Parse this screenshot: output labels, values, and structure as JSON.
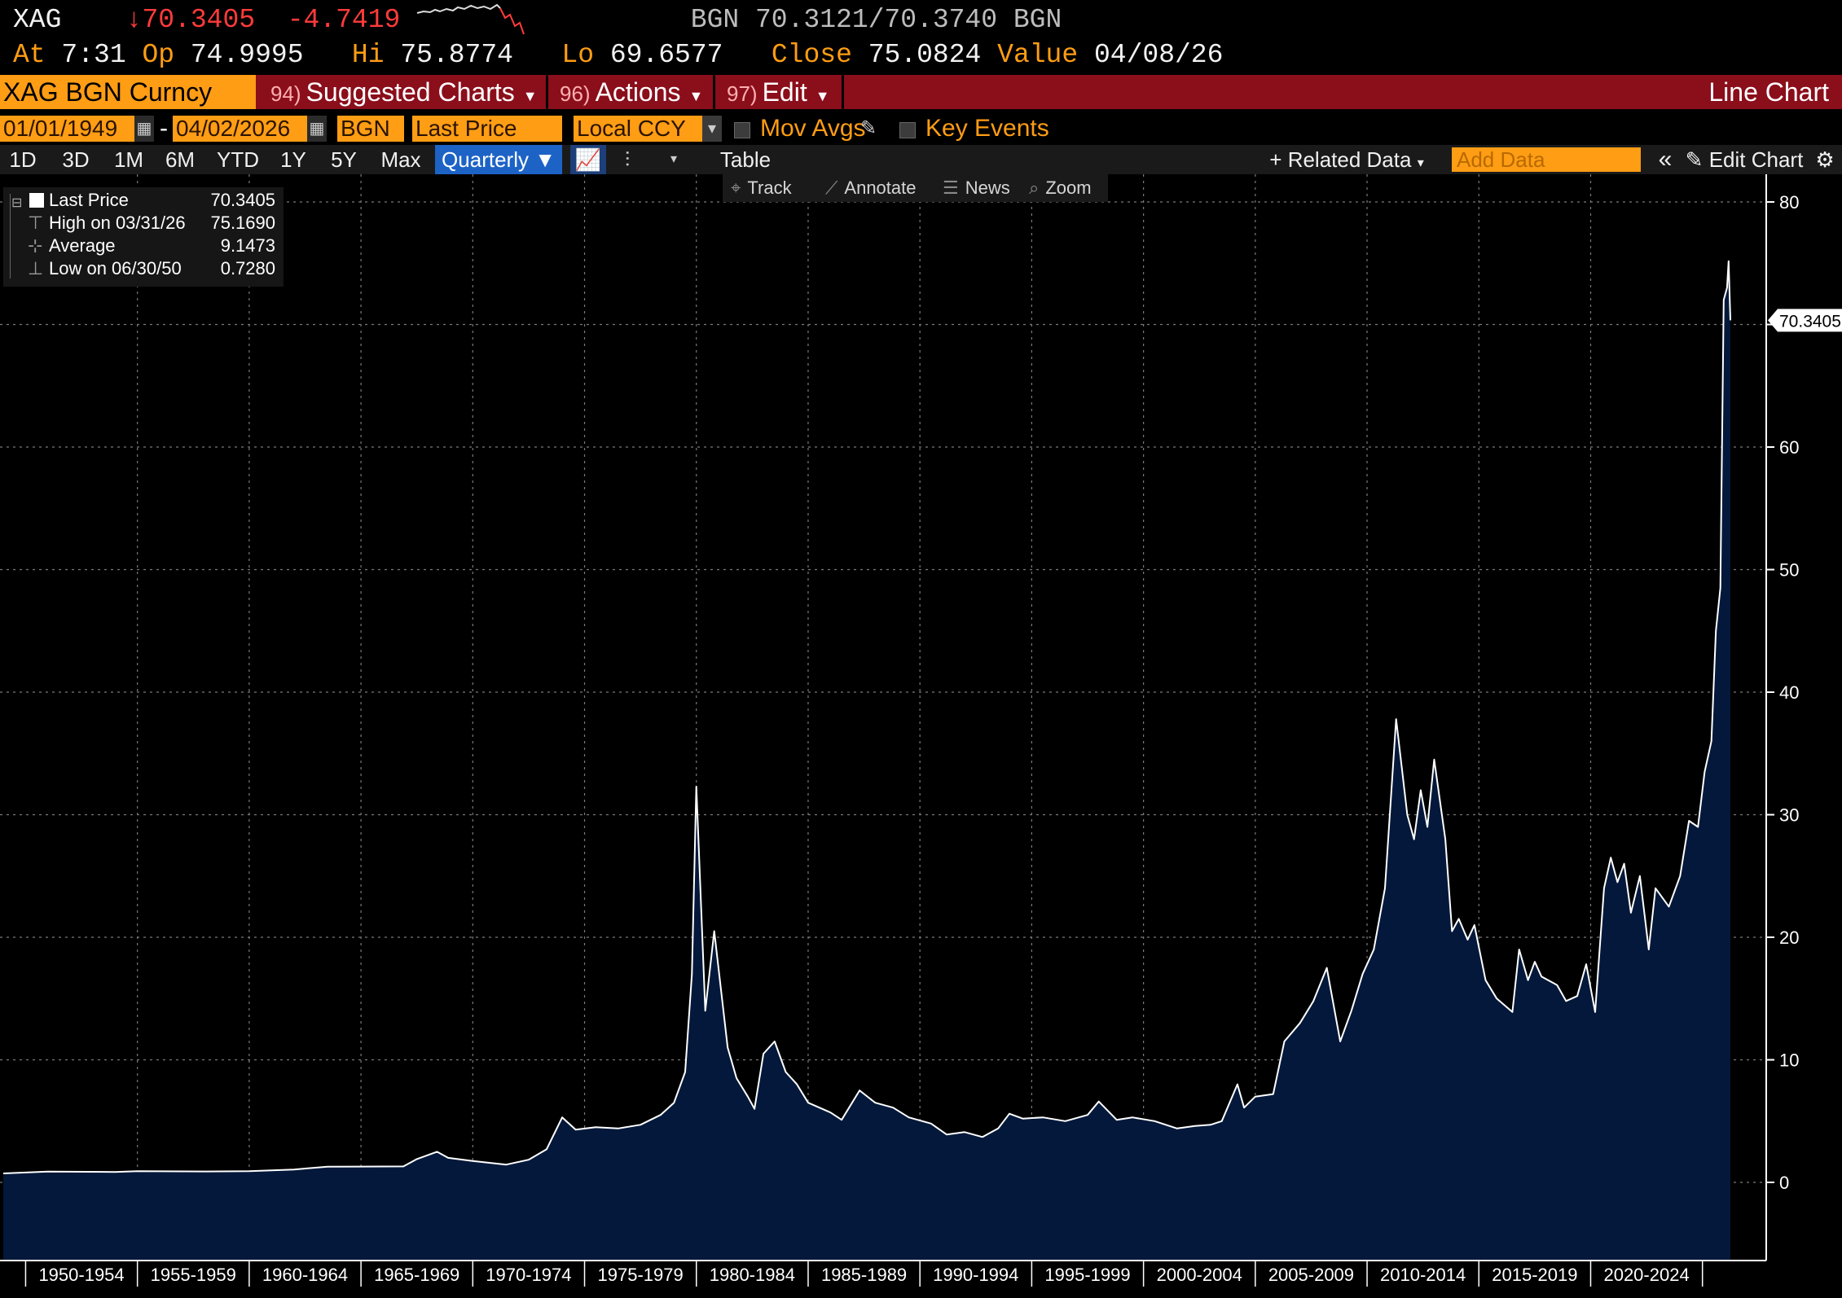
{
  "quote": {
    "ticker": "XAG",
    "last": "↓70.3405",
    "change": "-4.7419",
    "bid_ask": "BGN 70.3121/70.3740 BGN",
    "at_label": "At",
    "at_value": "7:31",
    "op_label": "Op",
    "op_value": "74.9995",
    "hi_label": "Hi",
    "hi_value": "75.8774",
    "lo_label": "Lo",
    "lo_value": "69.6577",
    "close_label": "Close",
    "close_value": "75.0824",
    "value_label": "Value",
    "value_value": "04/08/26"
  },
  "menubar": {
    "security": "XAG BGN Curncy",
    "suggested": {
      "num": "94)",
      "label": "Suggested Charts"
    },
    "actions": {
      "num": "96)",
      "label": "Actions"
    },
    "edit": {
      "num": "97)",
      "label": "Edit"
    },
    "chart_type": "Line Chart"
  },
  "settings": {
    "start_date": "01/01/1949",
    "dash": "-",
    "end_date": "04/02/2026",
    "source": "BGN",
    "field": "Last Price",
    "currency": "Local CCY",
    "mov_avgs": "Mov Avgs",
    "key_events": "Key Events"
  },
  "toolbar": {
    "ranges": [
      "1D",
      "3D",
      "1M",
      "6M",
      "YTD",
      "1Y",
      "5Y",
      "Max"
    ],
    "period": "Quarterly",
    "table": "Table",
    "related": "+ Related Data",
    "add_data_placeholder": "Add Data",
    "edit_chart": "Edit Chart"
  },
  "tools": {
    "track": "Track",
    "annotate": "Annotate",
    "news": "News",
    "zoom": "Zoom"
  },
  "legend": {
    "last_label": "Last Price",
    "last_value": "70.3405",
    "high_label": "High on 03/31/26",
    "high_value": "75.1690",
    "avg_label": "Average",
    "avg_value": "9.1473",
    "low_label": "Low on 06/30/50",
    "low_value": "0.7280"
  },
  "colors": {
    "line": "#ffffff",
    "area": "#03183a",
    "accent_orange": "#ff9d14",
    "menubar_red": "#8b0e1b",
    "price_red": "#ff3b3b"
  },
  "chart_data": {
    "type": "area",
    "title": "",
    "xlabel": "",
    "ylabel": "",
    "ylim": [
      -6,
      82
    ],
    "yticks": [
      0,
      10,
      20,
      30,
      40,
      50,
      60,
      70,
      80
    ],
    "ytick_labels": [
      "0",
      "10",
      "20",
      "30",
      "40",
      "50",
      "60",
      "70",
      "80"
    ],
    "last_value_label": "70.3405",
    "grid": true,
    "x_domain": [
      1949.0,
      2026.25
    ],
    "x_categories": [
      "1950-1954",
      "1955-1959",
      "1960-1964",
      "1965-1969",
      "1970-1974",
      "1975-1979",
      "1980-1984",
      "1985-1989",
      "1990-1994",
      "1995-1999",
      "2000-2004",
      "2005-2009",
      "2010-2014",
      "2015-2019",
      "2020-2024"
    ],
    "series": [
      {
        "values": [
          [
            1949.0,
            0.73
          ],
          [
            1951.0,
            0.88
          ],
          [
            1954.0,
            0.85
          ],
          [
            1955.0,
            0.91
          ],
          [
            1958.0,
            0.89
          ],
          [
            1960.0,
            0.91
          ],
          [
            1962.0,
            1.05
          ],
          [
            1963.5,
            1.28
          ],
          [
            1965.0,
            1.29
          ],
          [
            1966.9,
            1.3
          ],
          [
            1967.5,
            1.9
          ],
          [
            1968.4,
            2.5
          ],
          [
            1968.9,
            2.0
          ],
          [
            1970.0,
            1.75
          ],
          [
            1971.5,
            1.45
          ],
          [
            1972.5,
            1.85
          ],
          [
            1973.3,
            2.7
          ],
          [
            1974.0,
            5.3
          ],
          [
            1974.6,
            4.3
          ],
          [
            1975.5,
            4.5
          ],
          [
            1976.5,
            4.4
          ],
          [
            1977.5,
            4.7
          ],
          [
            1978.4,
            5.5
          ],
          [
            1979.0,
            6.5
          ],
          [
            1979.5,
            9.0
          ],
          [
            1979.8,
            17.0
          ],
          [
            1980.0,
            32.3
          ],
          [
            1980.4,
            14.0
          ],
          [
            1980.8,
            20.5
          ],
          [
            1981.4,
            11.0
          ],
          [
            1981.8,
            8.5
          ],
          [
            1982.3,
            7.0
          ],
          [
            1982.6,
            6.0
          ],
          [
            1983.0,
            10.5
          ],
          [
            1983.5,
            11.5
          ],
          [
            1984.0,
            9.0
          ],
          [
            1984.5,
            8.0
          ],
          [
            1985.0,
            6.5
          ],
          [
            1986.0,
            5.7
          ],
          [
            1986.5,
            5.1
          ],
          [
            1987.3,
            7.5
          ],
          [
            1988.0,
            6.5
          ],
          [
            1988.8,
            6.1
          ],
          [
            1989.5,
            5.3
          ],
          [
            1990.5,
            4.8
          ],
          [
            1991.2,
            3.9
          ],
          [
            1992.0,
            4.1
          ],
          [
            1992.8,
            3.7
          ],
          [
            1993.5,
            4.4
          ],
          [
            1994.0,
            5.6
          ],
          [
            1994.6,
            5.2
          ],
          [
            1995.5,
            5.3
          ],
          [
            1996.5,
            5.0
          ],
          [
            1997.5,
            5.5
          ],
          [
            1998.0,
            6.6
          ],
          [
            1998.8,
            5.1
          ],
          [
            1999.5,
            5.3
          ],
          [
            2000.5,
            5.0
          ],
          [
            2001.5,
            4.4
          ],
          [
            2002.3,
            4.6
          ],
          [
            2003.0,
            4.7
          ],
          [
            2003.5,
            5.0
          ],
          [
            2004.2,
            8.0
          ],
          [
            2004.5,
            6.1
          ],
          [
            2005.0,
            7.0
          ],
          [
            2005.8,
            7.2
          ],
          [
            2006.3,
            11.5
          ],
          [
            2007.0,
            13.0
          ],
          [
            2007.6,
            14.8
          ],
          [
            2008.2,
            17.5
          ],
          [
            2008.8,
            11.5
          ],
          [
            2009.3,
            14.0
          ],
          [
            2009.8,
            17.0
          ],
          [
            2010.3,
            19.0
          ],
          [
            2010.8,
            24.0
          ],
          [
            2011.3,
            37.8
          ],
          [
            2011.8,
            30.0
          ],
          [
            2012.1,
            28.0
          ],
          [
            2012.4,
            32.0
          ],
          [
            2012.7,
            29.0
          ],
          [
            2013.0,
            34.5
          ],
          [
            2013.5,
            28.0
          ],
          [
            2013.8,
            20.5
          ],
          [
            2014.1,
            21.5
          ],
          [
            2014.5,
            19.8
          ],
          [
            2014.8,
            21.0
          ],
          [
            2015.3,
            16.5
          ],
          [
            2015.8,
            15.0
          ],
          [
            2016.5,
            13.9
          ],
          [
            2016.8,
            19.0
          ],
          [
            2017.2,
            16.5
          ],
          [
            2017.5,
            18.0
          ],
          [
            2017.8,
            16.8
          ],
          [
            2018.5,
            16.1
          ],
          [
            2018.9,
            14.8
          ],
          [
            2019.4,
            15.2
          ],
          [
            2019.8,
            17.8
          ],
          [
            2020.2,
            13.9
          ],
          [
            2020.6,
            24.0
          ],
          [
            2020.9,
            26.5
          ],
          [
            2021.2,
            24.5
          ],
          [
            2021.5,
            26.0
          ],
          [
            2021.8,
            22.0
          ],
          [
            2022.2,
            25.0
          ],
          [
            2022.6,
            19.0
          ],
          [
            2022.9,
            24.0
          ],
          [
            2023.5,
            22.5
          ],
          [
            2024.0,
            25.0
          ],
          [
            2024.4,
            29.5
          ],
          [
            2024.8,
            29.0
          ],
          [
            2025.1,
            33.5
          ],
          [
            2025.4,
            36.0
          ],
          [
            2025.6,
            45.0
          ],
          [
            2025.8,
            48.5
          ],
          [
            2025.95,
            72.0
          ],
          [
            2026.1,
            73.0
          ],
          [
            2026.17,
            75.169
          ],
          [
            2026.25,
            70.3405
          ]
        ]
      }
    ]
  }
}
